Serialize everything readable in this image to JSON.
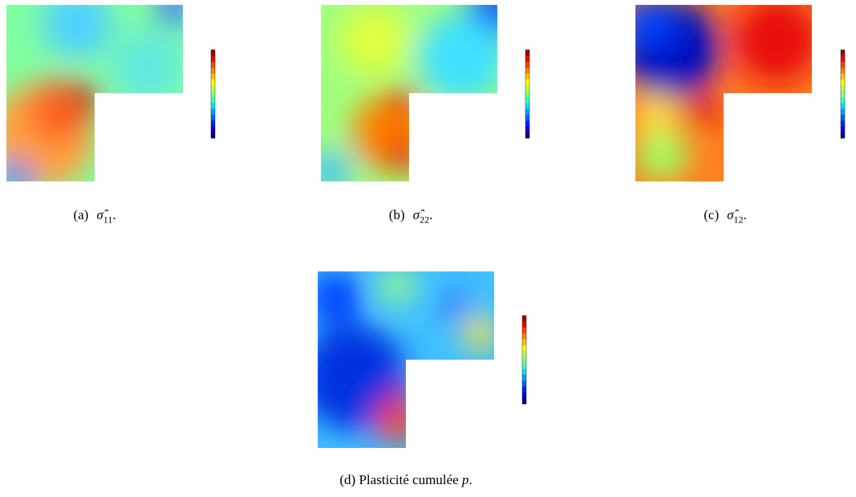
{
  "panels": [
    {
      "label": "(a)",
      "symbol": "σ̂",
      "subscript": "11",
      "end": "."
    },
    {
      "label": "(b)",
      "symbol": "σ̂",
      "subscript": "22",
      "end": "."
    },
    {
      "label": "(c)",
      "symbol": "σ̂",
      "subscript": "12",
      "end": "."
    },
    {
      "label": "(d)",
      "text": "Plasticité cumulée",
      "variable": "p",
      "end": "."
    }
  ]
}
